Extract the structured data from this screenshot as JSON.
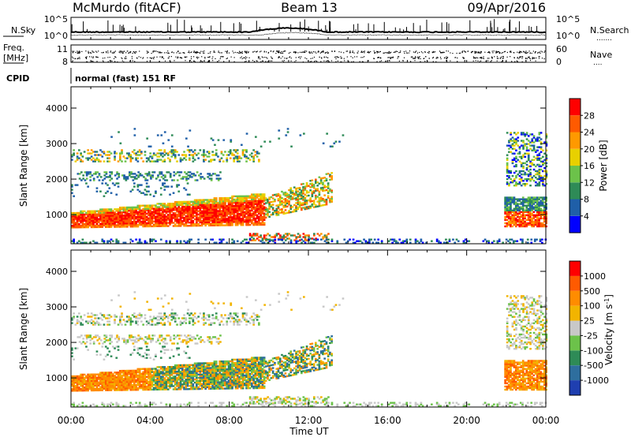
{
  "header": {
    "station": "McMurdo (fitACF)",
    "beam": "Beam 13",
    "date": "09/Apr/2016"
  },
  "top_strip": {
    "left_label": "N.Sky",
    "right_label": "N.Search",
    "right_dots": ".......",
    "left_ticks": [
      "10^5",
      "10^0"
    ],
    "right_ticks": [
      "10^5",
      "10^0"
    ]
  },
  "freq_strip": {
    "left_label_1": "Freq.",
    "left_label_2": "[MHz]",
    "right_label": "Nave",
    "right_dots": "....",
    "left_ticks": [
      "11",
      "8"
    ],
    "right_ticks": [
      "60",
      "0"
    ]
  },
  "cpid": {
    "label": "CPID",
    "mode": "normal (fast) 151 RF"
  },
  "chart_data": [
    {
      "type": "heatmap",
      "title": "",
      "quantity": "Power [dB]",
      "ylabel": "Slant Range [km]",
      "xlabel": "Time UT",
      "x_ticks": [
        "00:00",
        "04:00",
        "08:00",
        "12:00",
        "16:00",
        "20:00",
        "00:00"
      ],
      "xlim_hours": [
        0,
        24
      ],
      "y_ticks": [
        "1000",
        "2000",
        "3000",
        "4000"
      ],
      "ylim": [
        180,
        4600
      ],
      "colorbar_label": "Power [dB]",
      "colorbar_ticks": [
        "4",
        "8",
        "12",
        "16",
        "20",
        "24",
        "28"
      ],
      "colorbar_colors": [
        "#0000ff",
        "#1f5fa8",
        "#2e8b57",
        "#6cc24a",
        "#e8d000",
        "#ff9900",
        "#ff5a00",
        "#ff0000"
      ]
    },
    {
      "type": "heatmap",
      "title": "",
      "quantity": "Velocity [m s-1]",
      "ylabel": "Slant Range [km]",
      "xlabel": "Time UT",
      "x_ticks": [
        "00:00",
        "04:00",
        "08:00",
        "12:00",
        "16:00",
        "20:00",
        "00:00"
      ],
      "xlim_hours": [
        0,
        24
      ],
      "y_ticks": [
        "1000",
        "2000",
        "3000",
        "4000"
      ],
      "ylim": [
        180,
        4600
      ],
      "colorbar_label": "Velocity [m s",
      "colorbar_label_sup": "-1",
      "colorbar_label_end": "]",
      "colorbar_ticks": [
        "1000",
        "500",
        "100",
        "25",
        "-25",
        "-100",
        "-500",
        "-1000"
      ],
      "colorbar_colors": [
        "#1f3fb0",
        "#2e6e9e",
        "#2e8b57",
        "#6cc24a",
        "#c8c8c8",
        "#f2b400",
        "#ff8c00",
        "#ff5a00",
        "#ff0000"
      ]
    }
  ]
}
